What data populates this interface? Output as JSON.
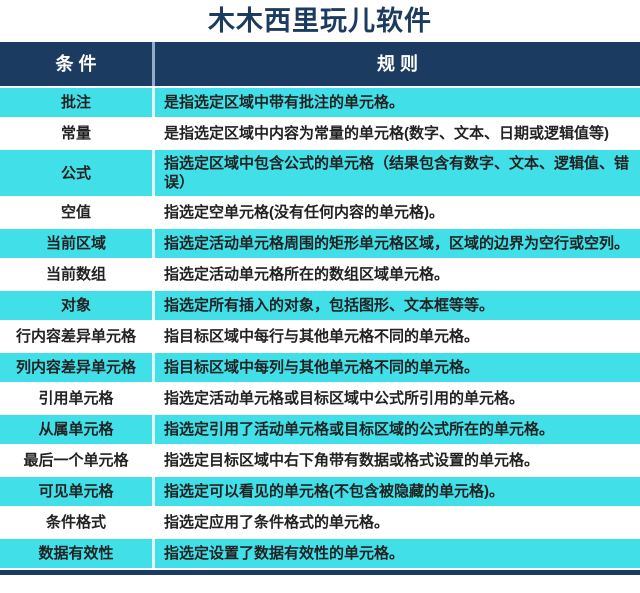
{
  "page": {
    "title": "木木西里玩儿软件"
  },
  "colors": {
    "navy": "#1c3b60",
    "teal": "#41e0e9",
    "text": "#222222",
    "white_row": "#ffffff"
  },
  "table": {
    "header": {
      "condition": "条 件",
      "rule": "规 则"
    },
    "rows": [
      {
        "condition": "批注",
        "rule": "是指选定区域中带有批注的单元格。",
        "tone": "teal"
      },
      {
        "condition": "常量",
        "rule": "是指选定区域中内容为常量的单元格(数字、文本、日期或逻辑值等)",
        "tone": "white"
      },
      {
        "condition": "公式",
        "rule": "指选定区域中包含公式的单元格（结果包含有数字、文本、逻辑值、错误）",
        "tone": "teal"
      },
      {
        "condition": "空值",
        "rule": "指选定空单元格(没有任何内容的单元格)。",
        "tone": "white"
      },
      {
        "condition": "当前区域",
        "rule": "指选定活动单元格周围的矩形单元格区域，区域的边界为空行或空列。",
        "tone": "teal"
      },
      {
        "condition": "当前数组",
        "rule": "指选定活动单元格所在的数组区域单元格。",
        "tone": "white"
      },
      {
        "condition": "对象",
        "rule": "指选定所有插入的对象，包括图形、文本框等等。",
        "tone": "teal"
      },
      {
        "condition": "行内容差异单元格",
        "rule": "指目标区域中每行与其他单元格不同的单元格。",
        "tone": "white"
      },
      {
        "condition": "列内容差异单元格",
        "rule": "指目标区域中每列与其他单元格不同的单元格。",
        "tone": "teal"
      },
      {
        "condition": "引用单元格",
        "rule": "指选定活动单元格或目标区域中公式所引用的单元格。",
        "tone": "white"
      },
      {
        "condition": "从属单元格",
        "rule": "指选定引用了活动单元格或目标区域的公式所在的单元格。",
        "tone": "teal"
      },
      {
        "condition": "最后一个单元格",
        "rule": "指选定目标区域中右下角带有数据或格式设置的单元格。",
        "tone": "white"
      },
      {
        "condition": "可见单元格",
        "rule": "指选定可以看见的单元格(不包含被隐藏的单元格)。",
        "tone": "teal"
      },
      {
        "condition": "条件格式",
        "rule": "指选定应用了条件格式的单元格。",
        "tone": "white"
      },
      {
        "condition": "数据有效性",
        "rule": "指选定设置了数据有效性的单元格。",
        "tone": "teal"
      }
    ]
  }
}
